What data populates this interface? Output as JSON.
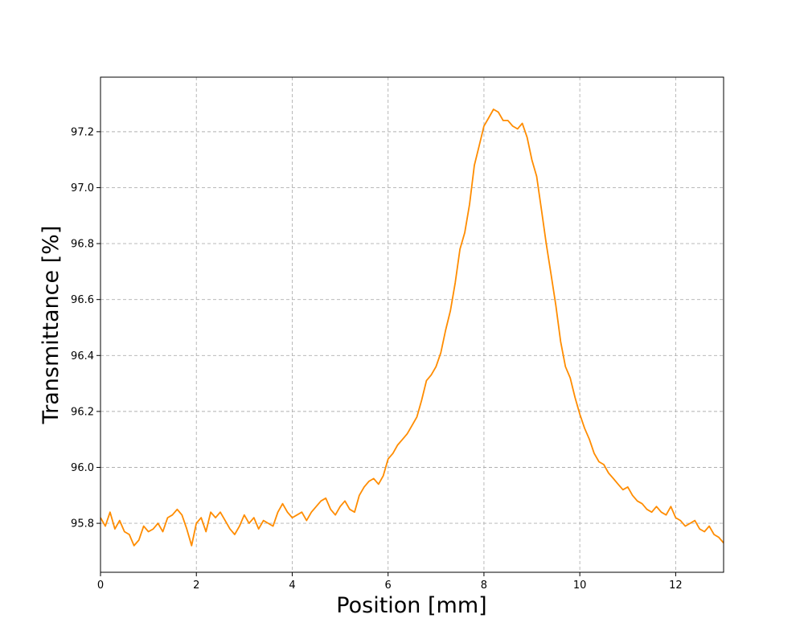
{
  "chart_data": {
    "type": "line",
    "xlabel": "Position [mm]",
    "ylabel": "Transmittance [%]",
    "xlim": [
      0,
      13
    ],
    "ylim": [
      95.625,
      97.395
    ],
    "xticks": [
      0,
      2,
      4,
      6,
      8,
      10,
      12
    ],
    "yticks": [
      95.8,
      96.0,
      96.2,
      96.4,
      96.6,
      96.8,
      97.0,
      97.2
    ],
    "xtick_labels": [
      "0",
      "2",
      "4",
      "6",
      "8",
      "10",
      "12"
    ],
    "ytick_labels": [
      "95.8",
      "96.0",
      "96.2",
      "96.4",
      "96.6",
      "96.8",
      "97.0",
      "97.2"
    ],
    "grid": true,
    "series": [
      {
        "color": "#ff8c00",
        "x": [
          0.0,
          0.1,
          0.2,
          0.3,
          0.4,
          0.5,
          0.6,
          0.7,
          0.8,
          0.9,
          1.0,
          1.1,
          1.2,
          1.3,
          1.4,
          1.5,
          1.6,
          1.7,
          1.8,
          1.9,
          2.0,
          2.1,
          2.2,
          2.3,
          2.4,
          2.5,
          2.6,
          2.7,
          2.8,
          2.9,
          3.0,
          3.1,
          3.2,
          3.3,
          3.4,
          3.5,
          3.6,
          3.7,
          3.8,
          3.9,
          4.0,
          4.1,
          4.2,
          4.3,
          4.4,
          4.5,
          4.6,
          4.7,
          4.8,
          4.9,
          5.0,
          5.1,
          5.2,
          5.3,
          5.4,
          5.5,
          5.6,
          5.7,
          5.8,
          5.9,
          6.0,
          6.1,
          6.2,
          6.3,
          6.4,
          6.5,
          6.6,
          6.7,
          6.8,
          6.9,
          7.0,
          7.1,
          7.2,
          7.3,
          7.4,
          7.5,
          7.6,
          7.7,
          7.8,
          7.9,
          8.0,
          8.1,
          8.2,
          8.3,
          8.4,
          8.5,
          8.6,
          8.7,
          8.8,
          8.9,
          9.0,
          9.1,
          9.2,
          9.3,
          9.4,
          9.5,
          9.6,
          9.7,
          9.8,
          9.9,
          10.0,
          10.1,
          10.2,
          10.3,
          10.4,
          10.5,
          10.6,
          10.7,
          10.8,
          10.9,
          11.0,
          11.1,
          11.2,
          11.3,
          11.4,
          11.5,
          11.6,
          11.7,
          11.8,
          11.9,
          12.0,
          12.1,
          12.2,
          12.3,
          12.4,
          12.5,
          12.6,
          12.7,
          12.8,
          12.9,
          13.0
        ],
        "y": [
          95.82,
          95.79,
          95.84,
          95.78,
          95.81,
          95.77,
          95.76,
          95.72,
          95.74,
          95.79,
          95.77,
          95.78,
          95.8,
          95.77,
          95.82,
          95.83,
          95.85,
          95.83,
          95.78,
          95.72,
          95.8,
          95.82,
          95.77,
          95.84,
          95.82,
          95.84,
          95.81,
          95.78,
          95.76,
          95.79,
          95.83,
          95.8,
          95.82,
          95.78,
          95.81,
          95.8,
          95.79,
          95.84,
          95.87,
          95.84,
          95.82,
          95.83,
          95.84,
          95.81,
          95.84,
          95.86,
          95.88,
          95.89,
          95.85,
          95.83,
          95.86,
          95.88,
          95.85,
          95.84,
          95.9,
          95.93,
          95.95,
          95.96,
          95.94,
          95.97,
          96.03,
          96.05,
          96.08,
          96.1,
          96.12,
          96.15,
          96.18,
          96.24,
          96.31,
          96.33,
          96.36,
          96.41,
          96.49,
          96.56,
          96.66,
          96.78,
          96.84,
          96.94,
          97.08,
          97.15,
          97.22,
          97.25,
          97.28,
          97.27,
          97.24,
          97.24,
          97.22,
          97.21,
          97.23,
          97.18,
          97.1,
          97.04,
          96.92,
          96.8,
          96.69,
          96.58,
          96.45,
          96.36,
          96.32,
          96.25,
          96.19,
          96.14,
          96.1,
          96.05,
          96.02,
          96.01,
          95.98,
          95.96,
          95.94,
          95.92,
          95.93,
          95.9,
          95.88,
          95.87,
          95.85,
          95.84,
          95.86,
          95.84,
          95.83,
          95.86,
          95.82,
          95.81,
          95.79,
          95.8,
          95.81,
          95.78,
          95.77,
          95.79,
          95.76,
          95.75,
          95.73
        ]
      }
    ]
  }
}
